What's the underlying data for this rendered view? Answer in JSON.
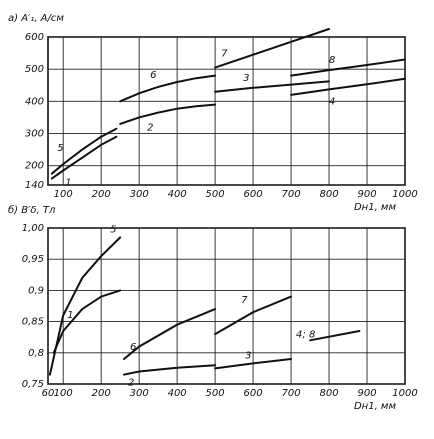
{
  "chart_data": [
    {
      "type": "line",
      "title": "а) A′₁, А/см",
      "x_label": "Dн1, мм",
      "xlim": [
        60,
        1000
      ],
      "xticks": [
        100,
        200,
        300,
        400,
        500,
        600,
        700,
        800,
        900,
        1000
      ],
      "ylim": [
        140,
        600
      ],
      "yticks": [
        140,
        200,
        300,
        400,
        500,
        600
      ],
      "grid": true,
      "series": [
        {
          "name": "1",
          "color": "#111111",
          "x": [
            70,
            100,
            150,
            200,
            240
          ],
          "values": [
            160,
            185,
            225,
            265,
            290
          ]
        },
        {
          "name": "5",
          "color": "#111111",
          "x": [
            70,
            100,
            150,
            200,
            240
          ],
          "values": [
            175,
            205,
            250,
            290,
            315
          ]
        },
        {
          "name": "2",
          "color": "#111111",
          "x": [
            250,
            300,
            350,
            400,
            450,
            500
          ],
          "values": [
            330,
            350,
            365,
            377,
            385,
            390
          ]
        },
        {
          "name": "6",
          "color": "#111111",
          "x": [
            250,
            300,
            350,
            400,
            450,
            500
          ],
          "values": [
            400,
            425,
            445,
            460,
            472,
            480
          ]
        },
        {
          "name": "7",
          "color": "#111111",
          "x": [
            500,
            600,
            700,
            800
          ],
          "values": [
            505,
            545,
            585,
            625
          ]
        },
        {
          "name": "3",
          "color": "#111111",
          "x": [
            500,
            600,
            700,
            800
          ],
          "values": [
            430,
            442,
            452,
            462
          ]
        },
        {
          "name": "8",
          "color": "#111111",
          "x": [
            700,
            800,
            900,
            1000
          ],
          "values": [
            480,
            497,
            513,
            530
          ]
        },
        {
          "name": "4",
          "color": "#111111",
          "x": [
            700,
            800,
            900,
            1000
          ],
          "values": [
            420,
            437,
            453,
            470
          ]
        }
      ]
    },
    {
      "type": "line",
      "title": "б) B′δ, Тл",
      "x_label": "Dн1, мм",
      "xlim": [
        60,
        1000
      ],
      "xticks": [
        60,
        100,
        200,
        300,
        400,
        500,
        600,
        700,
        800,
        900,
        1000
      ],
      "ylim": [
        0.75,
        1.0
      ],
      "yticks": [
        {
          "value": 0.75,
          "label": "0,75"
        },
        {
          "value": 0.8,
          "label": "0,8"
        },
        {
          "value": 0.85,
          "label": "0,85"
        },
        {
          "value": 0.9,
          "label": "0,9"
        },
        {
          "value": 0.95,
          "label": "0,95"
        },
        {
          "value": 1.0,
          "label": "1,00"
        }
      ],
      "grid": true,
      "series": [
        {
          "name": "5",
          "color": "#111111",
          "x": [
            65,
            100,
            150,
            200,
            250
          ],
          "values": [
            0.765,
            0.86,
            0.92,
            0.955,
            0.985
          ]
        },
        {
          "name": "1",
          "color": "#111111",
          "x": [
            75,
            100,
            150,
            200,
            250
          ],
          "values": [
            0.8,
            0.835,
            0.87,
            0.89,
            0.9
          ]
        },
        {
          "name": "6",
          "color": "#111111",
          "x": [
            260,
            300,
            400,
            500
          ],
          "values": [
            0.79,
            0.81,
            0.845,
            0.87
          ]
        },
        {
          "name": "2",
          "color": "#111111",
          "x": [
            260,
            300,
            400,
            500
          ],
          "values": [
            0.765,
            0.77,
            0.776,
            0.78
          ]
        },
        {
          "name": "7",
          "color": "#111111",
          "x": [
            500,
            600,
            700
          ],
          "values": [
            0.83,
            0.865,
            0.89
          ]
        },
        {
          "name": "3",
          "color": "#111111",
          "x": [
            500,
            600,
            700
          ],
          "values": [
            0.775,
            0.783,
            0.79
          ]
        },
        {
          "name": "4; 8",
          "color": "#111111",
          "x": [
            750,
            880
          ],
          "values": [
            0.82,
            0.835
          ]
        }
      ]
    }
  ]
}
